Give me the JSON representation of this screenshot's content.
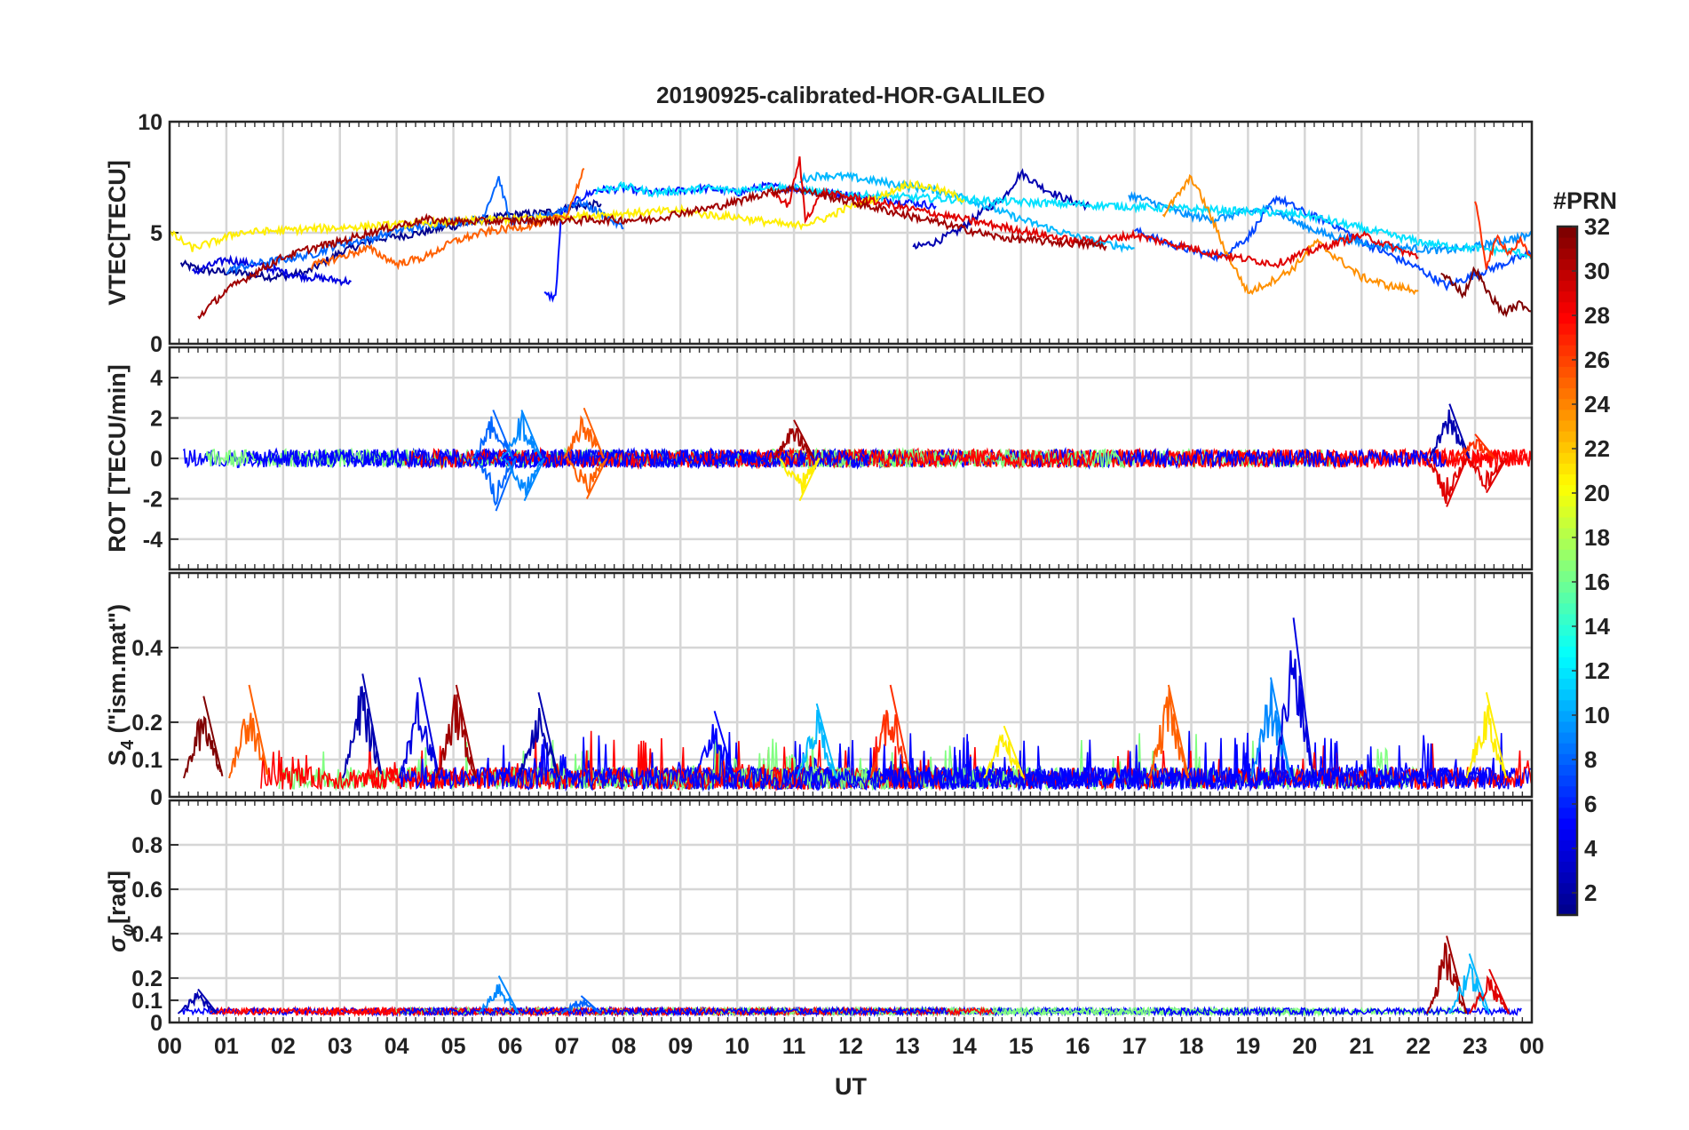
{
  "chart_data": {
    "type": "line",
    "title": "20190925-calibrated-HOR-GALILEO",
    "xlabel": "UT",
    "x_ticks": [
      "00",
      "01",
      "02",
      "03",
      "04",
      "05",
      "06",
      "07",
      "08",
      "09",
      "10",
      "11",
      "12",
      "13",
      "14",
      "15",
      "16",
      "17",
      "18",
      "19",
      "20",
      "21",
      "22",
      "23",
      "00"
    ],
    "xlim": [
      0,
      24
    ],
    "grid": true,
    "colorbar": {
      "title": "#PRN",
      "range": [
        1,
        32
      ],
      "ticks": [
        "2",
        "4",
        "6",
        "8",
        "10",
        "12",
        "14",
        "16",
        "18",
        "20",
        "22",
        "24",
        "26",
        "28",
        "30",
        "32"
      ],
      "colormap": "jet",
      "colors": [
        "#00008f",
        "#0000ff",
        "#0080ff",
        "#00ffff",
        "#80ff80",
        "#ffff00",
        "#ff8000",
        "#ff0000",
        "#800000"
      ]
    },
    "panels": [
      {
        "name": "vtec",
        "ylabel": "VTEC[TECU]",
        "ylim": [
          0,
          10
        ],
        "yticks": [
          "0",
          "5",
          "10"
        ],
        "series": [
          {
            "prn": 1,
            "color": "#00008f",
            "x": [
              0.2,
              0.6,
              1.2,
              1.8,
              2.4,
              3.0,
              3.6,
              4.2,
              4.8,
              5.4,
              6.0,
              6.6,
              7.2,
              7.6
            ],
            "y": [
              3.6,
              3.3,
              3.2,
              3.0,
              3.2,
              4.1,
              4.7,
              4.9,
              5.2,
              5.5,
              5.8,
              5.9,
              6.2,
              6.3
            ]
          },
          {
            "prn": 2,
            "color": "#0000b0",
            "x": [
              13.1,
              13.5,
              13.9,
              14.3,
              14.7,
              15.0,
              15.4,
              15.8,
              16.2
            ],
            "y": [
              4.3,
              4.6,
              5.1,
              5.9,
              6.6,
              7.7,
              7.0,
              6.5,
              6.2
            ]
          },
          {
            "prn": 3,
            "color": "#0000e0",
            "x": [
              0.4,
              1.0,
              1.6,
              2.2,
              2.8,
              3.2
            ],
            "y": [
              3.2,
              3.8,
              3.5,
              3.1,
              2.9,
              2.8
            ]
          },
          {
            "prn": 4,
            "color": "#0010ff",
            "x": [
              6.6,
              6.8,
              6.9,
              7.2,
              7.5,
              8.0,
              8.5,
              9.0,
              9.5,
              10.0,
              10.5,
              11.0,
              11.5,
              12.0,
              12.5,
              13.0,
              13.5
            ],
            "y": [
              2.2,
              2.1,
              5.8,
              6.5,
              6.9,
              7.0,
              6.8,
              6.9,
              7.0,
              6.8,
              7.1,
              7.0,
              6.8,
              6.7,
              6.5,
              6.4,
              6.2
            ]
          },
          {
            "prn": 5,
            "color": "#0044ff",
            "x": [
              17.0,
              17.5,
              18.0,
              18.5,
              19.0,
              19.5,
              20.0,
              20.5,
              21.0,
              21.5,
              22.0,
              22.5,
              23.0,
              23.5,
              24.0
            ],
            "y": [
              5.1,
              4.6,
              4.2,
              3.9,
              4.8,
              6.6,
              5.9,
              5.4,
              4.6,
              4.0,
              3.4,
              2.6,
              3.1,
              3.6,
              4.1
            ]
          },
          {
            "prn": 6,
            "color": "#0066ff",
            "x": [
              1.0,
              1.5,
              2.0,
              2.5,
              3.0,
              3.5,
              4.0,
              4.5,
              5.0,
              5.5,
              5.8,
              6.0,
              6.4,
              6.8,
              7.2,
              7.6,
              8.0
            ],
            "y": [
              3.3,
              3.6,
              3.8,
              4.0,
              4.5,
              4.7,
              5.1,
              5.3,
              5.5,
              5.6,
              7.5,
              5.5,
              5.6,
              5.9,
              6.4,
              5.9,
              5.2
            ]
          },
          {
            "prn": 8,
            "color": "#0090ff",
            "x": [
              16.9,
              17.4,
              17.9,
              18.4,
              18.9,
              19.4,
              19.9,
              20.4,
              20.9,
              21.4,
              21.9,
              22.4,
              22.9,
              23.4,
              24.0
            ],
            "y": [
              6.7,
              6.3,
              5.8,
              5.6,
              5.9,
              6.1,
              5.4,
              4.9,
              4.6,
              4.4,
              4.3,
              4.2,
              4.3,
              4.6,
              4.9
            ]
          },
          {
            "prn": 10,
            "color": "#00b8ff",
            "x": [
              11.1,
              11.5,
              12.0,
              12.5,
              13.0,
              13.5,
              14.0,
              14.5,
              15.0,
              15.5,
              16.0,
              16.5,
              17.0
            ],
            "y": [
              7.4,
              7.6,
              7.5,
              7.3,
              7.1,
              6.9,
              6.6,
              6.1,
              5.6,
              5.2,
              4.8,
              4.5,
              4.3
            ]
          },
          {
            "prn": 12,
            "color": "#00e0ff",
            "x": [
              7.5,
              8.0,
              8.5,
              9.0,
              9.5,
              10.0,
              10.5,
              11.0,
              11.5,
              12.0,
              19.5,
              20.0,
              20.5,
              21.0,
              21.5,
              22.0,
              22.5,
              23.0,
              23.5,
              24.0
            ],
            "y": [
              6.9,
              7.1,
              6.8,
              6.9,
              7.0,
              6.9,
              7.1,
              7.0,
              6.8,
              6.7,
              5.9,
              5.8,
              5.5,
              5.2,
              4.9,
              4.6,
              4.4,
              4.3,
              4.2,
              4.0
            ]
          },
          {
            "prn": 20,
            "color": "#ffee00",
            "x": [
              0.0,
              0.4,
              0.8,
              1.2,
              9.0,
              9.5,
              10.0,
              10.5,
              11.0,
              11.5,
              12.0,
              12.5,
              13.0,
              13.5,
              14.0
            ],
            "y": [
              5.0,
              4.3,
              4.6,
              5.0,
              6.0,
              5.8,
              5.7,
              5.5,
              5.3,
              5.6,
              6.2,
              6.6,
              7.2,
              7.0,
              6.5
            ]
          },
          {
            "prn": 24,
            "color": "#ff9000",
            "x": [
              17.5,
              17.8,
              18.0,
              18.3,
              18.6,
              19.0,
              19.4,
              19.8,
              20.2,
              20.6,
              21.0,
              21.5,
              22.0
            ],
            "y": [
              5.8,
              6.8,
              7.5,
              6.0,
              4.2,
              2.3,
              2.8,
              3.4,
              4.6,
              3.8,
              3.0,
              2.6,
              2.4
            ]
          },
          {
            "prn": 26,
            "color": "#ff6000",
            "x": [
              2.5,
              3.0,
              3.5,
              4.0,
              4.5,
              5.0,
              5.5,
              6.0,
              6.5,
              7.0,
              7.3
            ],
            "y": [
              3.5,
              3.9,
              4.3,
              3.6,
              3.9,
              4.6,
              5.0,
              5.2,
              5.4,
              5.8,
              7.9
            ]
          },
          {
            "prn": 27,
            "color": "#ff3000",
            "x": [
              23.0,
              23.2,
              23.4,
              23.6,
              23.8,
              24.0
            ],
            "y": [
              6.4,
              3.5,
              4.8,
              4.1,
              4.6,
              3.8
            ]
          },
          {
            "prn": 29,
            "color": "#e00000",
            "x": [
              10.6,
              10.9,
              11.1,
              11.2,
              11.5,
              12.0,
              16.0,
              16.5,
              17.0,
              17.5,
              18.0,
              18.5,
              19.0,
              19.5,
              20.0,
              20.5,
              21.0,
              21.5,
              22.0
            ],
            "y": [
              6.9,
              6.2,
              8.3,
              5.6,
              6.8,
              6.6,
              4.6,
              4.7,
              4.9,
              4.6,
              4.3,
              4.0,
              3.8,
              3.6,
              4.1,
              4.5,
              4.9,
              4.4,
              3.9
            ]
          },
          {
            "prn": 31,
            "color": "#a00000",
            "x": [
              0.5,
              1.0,
              1.5,
              2.0,
              2.5,
              3.0,
              3.5,
              4.0,
              4.5,
              5.0,
              8.5,
              9.0,
              9.5,
              10.0,
              10.5,
              11.0,
              14.6,
              15.0,
              15.5,
              16.0,
              16.5
            ],
            "y": [
              1.2,
              2.4,
              3.2,
              3.9,
              4.3,
              4.6,
              5.0,
              5.3,
              5.6,
              5.5,
              5.6,
              5.9,
              6.1,
              6.4,
              6.8,
              7.0,
              4.8,
              4.7,
              4.6,
              4.5,
              4.4
            ]
          },
          {
            "prn": 32,
            "color": "#800000",
            "x": [
              22.4,
              22.6,
              22.8,
              23.0,
              23.2,
              23.5,
              23.8,
              24.0
            ],
            "y": [
              3.1,
              2.8,
              2.2,
              3.4,
              2.4,
              1.4,
              1.8,
              1.5
            ]
          }
        ]
      },
      {
        "name": "rot",
        "ylabel": "ROT [TECU/min]",
        "ylim": [
          -5.5,
          5.5
        ],
        "yticks": [
          "-4",
          "-2",
          "0",
          "2",
          "4"
        ],
        "spikes": [
          {
            "x": 5.7,
            "y": 2.4,
            "color": "#0066ff"
          },
          {
            "x": 5.75,
            "y": -2.6,
            "color": "#0066ff"
          },
          {
            "x": 6.2,
            "y": 2.4,
            "color": "#0088ff"
          },
          {
            "x": 6.25,
            "y": -2.1,
            "color": "#0088ff"
          },
          {
            "x": 7.3,
            "y": 2.5,
            "color": "#ff6000"
          },
          {
            "x": 7.35,
            "y": -2.0,
            "color": "#ff6000"
          },
          {
            "x": 11.0,
            "y": 1.9,
            "color": "#a00000"
          },
          {
            "x": 11.1,
            "y": -2.1,
            "color": "#ffee00"
          },
          {
            "x": 22.55,
            "y": 2.7,
            "color": "#0000b0"
          },
          {
            "x": 22.5,
            "y": -2.4,
            "color": "#e00000"
          },
          {
            "x": 23.0,
            "y": 1.2,
            "color": "#ff3000"
          },
          {
            "x": 23.2,
            "y": -1.7,
            "color": "#e00000"
          }
        ]
      },
      {
        "name": "s4",
        "ylabel": "S4 (\"ism.mat\")",
        "ylabel_base": "S",
        "ylabel_sub": "4",
        "ylabel_rest": " (\"ism.mat\")",
        "ylim": [
          0,
          0.6
        ],
        "yticks": [
          "0",
          "0.1",
          "0.2",
          "0.4"
        ],
        "spikes": [
          {
            "x": 0.6,
            "y": 0.27,
            "color": "#800000"
          },
          {
            "x": 1.4,
            "y": 0.3,
            "color": "#ff6000"
          },
          {
            "x": 3.4,
            "y": 0.33,
            "color": "#0000b0"
          },
          {
            "x": 4.4,
            "y": 0.32,
            "color": "#0000e0"
          },
          {
            "x": 5.05,
            "y": 0.3,
            "color": "#a00000"
          },
          {
            "x": 6.5,
            "y": 0.28,
            "color": "#0000b0"
          },
          {
            "x": 9.6,
            "y": 0.23,
            "color": "#0000ff"
          },
          {
            "x": 11.4,
            "y": 0.25,
            "color": "#00b8ff"
          },
          {
            "x": 12.7,
            "y": 0.3,
            "color": "#ff3000"
          },
          {
            "x": 14.7,
            "y": 0.19,
            "color": "#ffee00"
          },
          {
            "x": 17.6,
            "y": 0.3,
            "color": "#ff6000"
          },
          {
            "x": 19.4,
            "y": 0.32,
            "color": "#0088ff"
          },
          {
            "x": 19.8,
            "y": 0.48,
            "color": "#0000e0"
          },
          {
            "x": 23.2,
            "y": 0.28,
            "color": "#ffee00"
          }
        ]
      },
      {
        "name": "sigma_phi",
        "ylabel": "σφ[rad]",
        "ylabel_base": "σ",
        "ylabel_sub": "φ",
        "ylabel_rest": "[rad]",
        "ylim": [
          0,
          1.0
        ],
        "yticks": [
          "0",
          "0.1",
          "0.2",
          "0.4",
          "0.6",
          "0.8"
        ],
        "spikes": [
          {
            "x": 0.5,
            "y": 0.15,
            "color": "#0000b0"
          },
          {
            "x": 5.8,
            "y": 0.21,
            "color": "#0088ff"
          },
          {
            "x": 7.25,
            "y": 0.12,
            "color": "#0066ff"
          },
          {
            "x": 22.5,
            "y": 0.39,
            "color": "#a00000"
          },
          {
            "x": 22.9,
            "y": 0.31,
            "color": "#00b8ff"
          },
          {
            "x": 23.25,
            "y": 0.24,
            "color": "#e00000"
          }
        ]
      }
    ]
  }
}
